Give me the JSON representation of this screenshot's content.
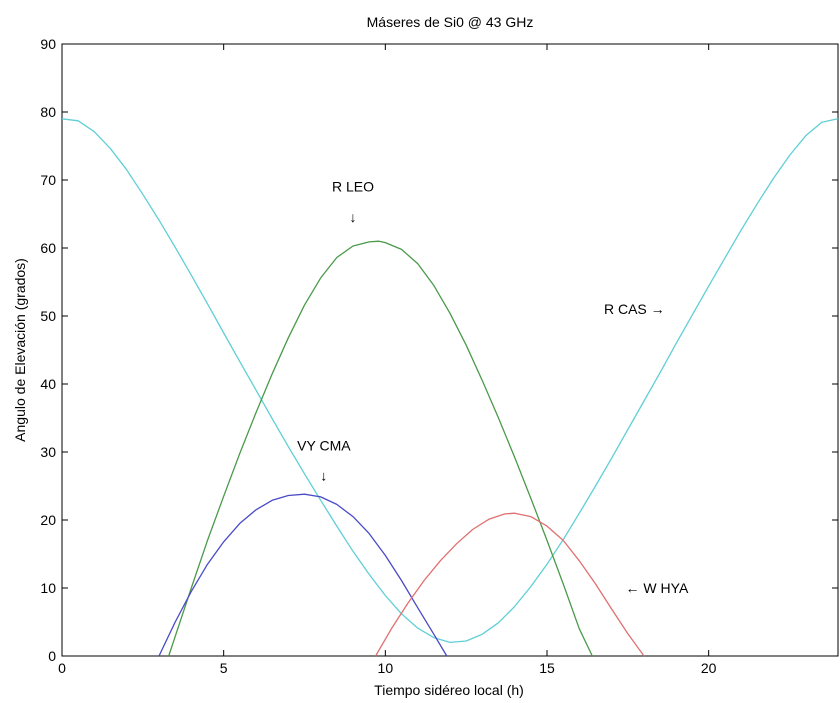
{
  "chart_data": {
    "type": "line",
    "title": "Máseres de Si0 @ 43 GHz",
    "xlabel": "Tiempo sidéreo local (h)",
    "ylabel": "Angulo de Elevación (grados)",
    "xlim": [
      0,
      24
    ],
    "ylim": [
      0,
      90
    ],
    "xticks": [
      0,
      5,
      10,
      15,
      20
    ],
    "yticks": [
      0,
      10,
      20,
      30,
      40,
      50,
      60,
      70,
      80,
      90
    ],
    "grid": false,
    "legend": "none",
    "series": [
      {
        "color": "#5fcfd6",
        "x": [
          0,
          0.5,
          1,
          1.5,
          2,
          2.5,
          3,
          3.5,
          4,
          4.5,
          5,
          5.5,
          6,
          6.5,
          7,
          7.5,
          8,
          8.5,
          9,
          9.5,
          10,
          10.5,
          11,
          11.5,
          12,
          12.5,
          13,
          13.5,
          14,
          14.5,
          15,
          15.5,
          16,
          16.5,
          17,
          17.5,
          18,
          18.5,
          19,
          19.5,
          20,
          20.5,
          21,
          21.5,
          22,
          22.5,
          23,
          23.5,
          24
        ],
        "y": [
          79,
          78.7,
          77.1,
          74.6,
          71.5,
          67.9,
          64.1,
          60.1,
          56,
          51.8,
          47.5,
          43.3,
          39.1,
          34.9,
          30.8,
          26.8,
          22.9,
          19.1,
          15.4,
          12,
          8.9,
          6.2,
          4.1,
          2.7,
          2,
          2.2,
          3.2,
          4.9,
          7.3,
          10.2,
          13.5,
          17.1,
          21,
          25,
          29.1,
          33.3,
          37.5,
          41.7,
          46,
          50.2,
          54.4,
          58.5,
          62.6,
          66.5,
          70.2,
          73.6,
          76.5,
          78.5,
          79
        ]
      },
      {
        "color": "#4a9a4a",
        "x": [
          3.3,
          4,
          4.5,
          5,
          5.5,
          6,
          6.5,
          7,
          7.5,
          8,
          8.5,
          9,
          9.5,
          9.8,
          10,
          10.5,
          11,
          11.5,
          12,
          12.5,
          13,
          13.5,
          14,
          14.5,
          15,
          15.5,
          16,
          16.4
        ],
        "y": [
          0,
          10,
          17,
          23.5,
          29.8,
          35.8,
          41.5,
          46.8,
          51.6,
          55.6,
          58.6,
          60.3,
          60.9,
          61,
          60.8,
          59.8,
          57.7,
          54.5,
          50.4,
          45.7,
          40.5,
          35,
          29.2,
          23.2,
          17,
          10.6,
          4,
          0
        ]
      },
      {
        "color": "#4a4ac8",
        "x": [
          3,
          3.5,
          4,
          4.5,
          5,
          5.5,
          6,
          6.5,
          7,
          7.5,
          8,
          8.5,
          9,
          9.5,
          10,
          10.5,
          11,
          11.5,
          11.9
        ],
        "y": [
          0,
          5,
          9.5,
          13.5,
          16.8,
          19.5,
          21.5,
          22.9,
          23.6,
          23.8,
          23.4,
          22.3,
          20.5,
          18,
          14.8,
          11.1,
          7.1,
          3.2,
          0
        ]
      },
      {
        "color": "#e07070",
        "x": [
          9.7,
          10.2,
          10.7,
          11.2,
          11.7,
          12.2,
          12.7,
          13.2,
          13.7,
          14,
          14.5,
          15,
          15.5,
          16,
          16.5,
          17,
          17.5,
          18
        ],
        "y": [
          0,
          4.1,
          7.8,
          11.1,
          14,
          16.5,
          18.6,
          20.1,
          20.9,
          21,
          20.5,
          19.1,
          17,
          14,
          10.6,
          6.9,
          3.3,
          0
        ]
      }
    ],
    "annotations": [
      {
        "text": "R LEO",
        "x": 9.0,
        "y": 68.3
      },
      {
        "text": "↓",
        "x": 9.0,
        "y": 63.8
      },
      {
        "text": "R CAS →",
        "x": 17.7,
        "y": 50.3
      },
      {
        "text": "VY CMA",
        "x": 8.1,
        "y": 30.2
      },
      {
        "text": "↓",
        "x": 8.1,
        "y": 25.8
      },
      {
        "text": "← W HYA",
        "x": 18.4,
        "y": 9.3
      }
    ]
  }
}
